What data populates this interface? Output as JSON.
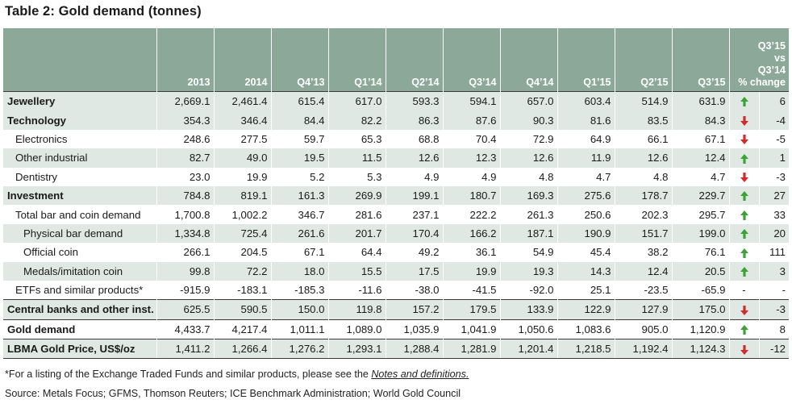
{
  "title": "Table 2: Gold demand (tonnes)",
  "colors": {
    "header_bg": "#8ca898",
    "shade_bg": "#dfe8e2",
    "up": "#3aa336",
    "down": "#d42a2a"
  },
  "headers": {
    "c1": "2013",
    "c2": "2014",
    "c3": "Q4’13",
    "c4": "Q1’14",
    "c5": "Q2’14",
    "c6": "Q3’14",
    "c7": "Q4’14",
    "c8": "Q1’15",
    "c9": "Q2’15",
    "c10": "Q3’15",
    "change_l1": "Q3’15",
    "change_l2": "vs",
    "change_l3": "Q3’14",
    "change_l4": "% change"
  },
  "rows": [
    {
      "label": "Jewellery",
      "values": [
        "2,669.1",
        "2,461.4",
        "615.4",
        "617.0",
        "593.3",
        "594.1",
        "657.0",
        "603.4",
        "514.9",
        "631.9"
      ],
      "trend": "up",
      "change": "6"
    },
    {
      "label": "Technology",
      "values": [
        "354.3",
        "346.4",
        "84.4",
        "82.2",
        "86.3",
        "87.6",
        "90.3",
        "81.6",
        "83.5",
        "84.3"
      ],
      "trend": "down",
      "change": "-4"
    },
    {
      "label": "Electronics",
      "values": [
        "248.6",
        "277.5",
        "59.7",
        "65.3",
        "68.8",
        "70.4",
        "72.9",
        "64.9",
        "66.1",
        "67.1"
      ],
      "trend": "down",
      "change": "-5"
    },
    {
      "label": "Other industrial",
      "values": [
        "82.7",
        "49.0",
        "19.5",
        "11.5",
        "12.6",
        "12.3",
        "12.6",
        "11.9",
        "12.6",
        "12.4"
      ],
      "trend": "up",
      "change": "1"
    },
    {
      "label": "Dentistry",
      "values": [
        "23.0",
        "19.9",
        "5.2",
        "5.3",
        "4.9",
        "4.9",
        "4.8",
        "4.7",
        "4.8",
        "4.7"
      ],
      "trend": "down",
      "change": "-3"
    },
    {
      "label": "Investment",
      "values": [
        "784.8",
        "819.1",
        "161.3",
        "269.9",
        "199.1",
        "180.7",
        "169.3",
        "275.6",
        "178.7",
        "229.7"
      ],
      "trend": "up",
      "change": "27"
    },
    {
      "label": "Total bar and coin demand",
      "values": [
        "1,700.8",
        "1,002.2",
        "346.7",
        "281.6",
        "237.1",
        "222.2",
        "261.3",
        "250.6",
        "202.3",
        "295.7"
      ],
      "trend": "up",
      "change": "33"
    },
    {
      "label": "Physical bar demand",
      "values": [
        "1,334.8",
        "725.4",
        "261.6",
        "201.7",
        "170.4",
        "166.2",
        "187.1",
        "190.9",
        "151.7",
        "199.0"
      ],
      "trend": "up",
      "change": "20"
    },
    {
      "label": "Official coin",
      "values": [
        "266.1",
        "204.5",
        "67.1",
        "64.4",
        "49.2",
        "36.1",
        "54.9",
        "45.4",
        "38.2",
        "76.1"
      ],
      "trend": "up",
      "change": "111"
    },
    {
      "label": "Medals/imitation coin",
      "values": [
        "99.8",
        "72.2",
        "18.0",
        "15.5",
        "17.5",
        "19.9",
        "19.3",
        "14.3",
        "12.4",
        "20.5"
      ],
      "trend": "up",
      "change": "3"
    },
    {
      "label": "ETFs and similar products*",
      "values": [
        "-915.9",
        "-183.1",
        "-185.3",
        "-11.6",
        "-38.0",
        "-41.5",
        "-92.0",
        "25.1",
        "-23.5",
        "-65.9"
      ],
      "trend": "dash",
      "change": "-"
    },
    {
      "label": "Central banks and other inst.",
      "values": [
        "625.5",
        "590.5",
        "150.0",
        "119.8",
        "157.2",
        "179.5",
        "133.9",
        "122.9",
        "127.9",
        "175.0"
      ],
      "trend": "down",
      "change": "-3"
    },
    {
      "label": "Gold demand",
      "values": [
        "4,433.7",
        "4,217.4",
        "1,011.1",
        "1,089.0",
        "1,035.9",
        "1,041.9",
        "1,050.6",
        "1,083.6",
        "905.0",
        "1,120.9"
      ],
      "trend": "up",
      "change": "8"
    },
    {
      "label": "LBMA Gold Price, US$/oz",
      "values": [
        "1,411.2",
        "1,266.4",
        "1,276.2",
        "1,293.1",
        "1,288.4",
        "1,281.9",
        "1,201.4",
        "1,218.5",
        "1,192.4",
        "1,124.3"
      ],
      "trend": "down",
      "change": "-12"
    }
  ],
  "footnote": {
    "text": "*For a listing of the Exchange Traded Funds and similar products, please see the ",
    "link": "Notes and definitions."
  },
  "source": "Source: Metals Focus; GFMS, Thomson Reuters; ICE Benchmark Administration; World Gold Council"
}
